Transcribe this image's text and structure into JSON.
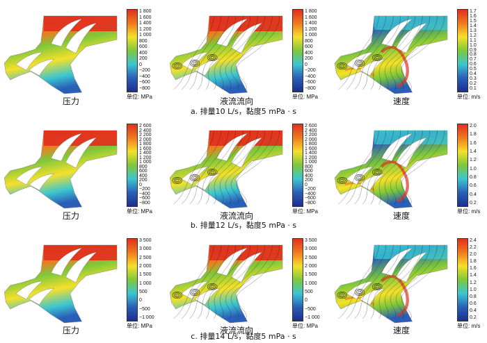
{
  "colors": {
    "red": "#e0301e",
    "orange": "#f07a1e",
    "yellow": "#f5e02a",
    "green": "#7ec83a",
    "cyan": "#3cc6d0",
    "blue": "#2a5fb8",
    "navy": "#1b2f8f"
  },
  "rows": [
    {
      "caption": "a. 排量10 L/s，黏度5 mPa · s",
      "panels": [
        {
          "label": "压力",
          "unit": "单位: MPa",
          "ticks": [
            "1 800",
            "1 600",
            "1 400",
            "1 200",
            "1 000",
            "800",
            "600",
            "400",
            "200",
            "0",
            "−200",
            "−400",
            "−600",
            "−800"
          ]
        },
        {
          "label": "液流流向",
          "unit": "单位: MPa",
          "ticks": [
            "1 800",
            "1 600",
            "1 400",
            "1 200",
            "1 000",
            "800",
            "600",
            "400",
            "200",
            "0",
            "−200",
            "−400",
            "−600",
            "−800"
          ]
        },
        {
          "label": "速度",
          "unit": "单位: m/s",
          "ticks": [
            "1.7",
            "1.6",
            "1.5",
            "1.4",
            "1.3",
            "1.2",
            "1.1",
            "1.0",
            "0.9",
            "0.8",
            "0.7",
            "0.6",
            "0.5",
            "0.4",
            "0.3",
            "0.2",
            "0.1"
          ]
        }
      ]
    },
    {
      "caption": "b. 排量12 L/s，黏度5 mPa · s",
      "panels": [
        {
          "label": "压力",
          "unit": "单位: MPa",
          "ticks": [
            "2 600",
            "2 400",
            "2 200",
            "2 000",
            "1 800",
            "1 600",
            "1 400",
            "1 200",
            "1 000",
            "800",
            "600",
            "400",
            "200",
            "0",
            "−200",
            "−400",
            "−600",
            "−800"
          ]
        },
        {
          "label": "液流流向",
          "unit": "单位: MPa",
          "ticks": [
            "2 600",
            "2 400",
            "2 200",
            "2 000",
            "1 800",
            "1 600",
            "1 400",
            "1 200",
            "1 000",
            "800",
            "600",
            "400",
            "200",
            "0",
            "−200",
            "−400",
            "−600",
            "−800"
          ]
        },
        {
          "label": "速度",
          "unit": "单位: m/s",
          "ticks": [
            "2.0",
            "1.8",
            "1.6",
            "1.4",
            "1.2",
            "1.0",
            "0.8",
            "0.6",
            "0.4",
            "0.2"
          ]
        }
      ]
    },
    {
      "caption": "c. 排量14 L/s，黏度5 mPa · s",
      "panels": [
        {
          "label": "压力",
          "unit": "单位: MPa",
          "ticks": [
            "3 500",
            "3 000",
            "2 500",
            "2 000",
            "1 500",
            "1 000",
            "500",
            "0",
            "−500",
            "−1 000"
          ]
        },
        {
          "label": "液流流向",
          "unit": "单位: MPa",
          "ticks": [
            "3 500",
            "3 000",
            "2 500",
            "2 000",
            "1 500",
            "1 000",
            "500",
            "0",
            "−500",
            "−1 000"
          ]
        },
        {
          "label": "速度",
          "unit": "单位: m/s",
          "ticks": [
            "2.4",
            "2.2",
            "2.0",
            "1.8",
            "1.6",
            "1.4",
            "1.2",
            "1.0",
            "0.8",
            "0.6",
            "0.4",
            "0.2"
          ]
        }
      ]
    }
  ]
}
